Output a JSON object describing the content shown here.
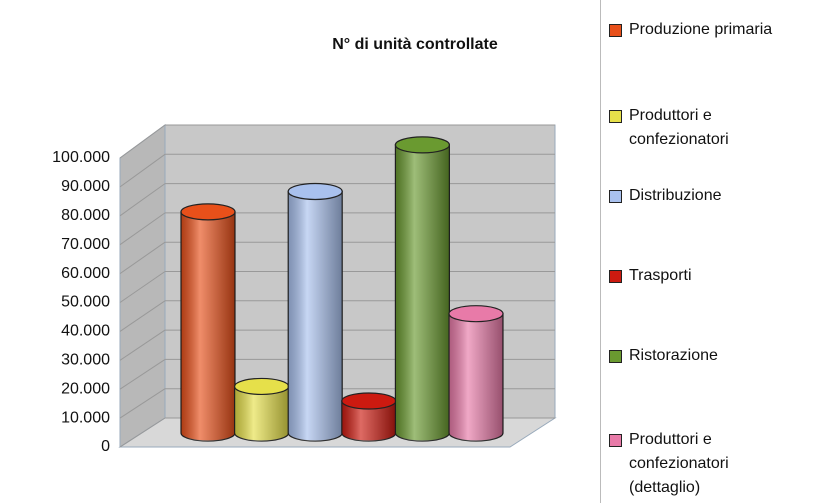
{
  "chart_data": {
    "type": "bar",
    "title": "N° di unità controllate",
    "categories": [
      "Produzione primaria",
      "Produttori e confezionatori",
      "Distribuzione",
      "Trasporti",
      "Ristorazione",
      "Produttori e confezionatori (dettaglio)"
    ],
    "values": [
      76000,
      16000,
      83000,
      11000,
      99000,
      41000
    ],
    "colors": [
      "#e8501a",
      "#e6e04a",
      "#a9c1ee",
      "#cc1a10",
      "#6a9a30",
      "#e87aa8"
    ],
    "ylim": [
      0,
      100000
    ],
    "yticks": [
      0,
      {
        "value": 10000,
        "label": "10.000"
      },
      {
        "value": 20000,
        "label": "20.000"
      },
      {
        "value": 30000,
        "label": "30.000"
      },
      {
        "value": 40000,
        "label": "40.000"
      },
      {
        "value": 50000,
        "label": "50.000"
      },
      {
        "value": 60000,
        "label": "60.000"
      },
      {
        "value": 70000,
        "label": "70.000"
      },
      {
        "value": 80000,
        "label": "80.000"
      },
      {
        "value": 90000,
        "label": "90.000"
      },
      {
        "value": 100000,
        "label": "100.000"
      }
    ],
    "grid": true,
    "legend": "right"
  }
}
